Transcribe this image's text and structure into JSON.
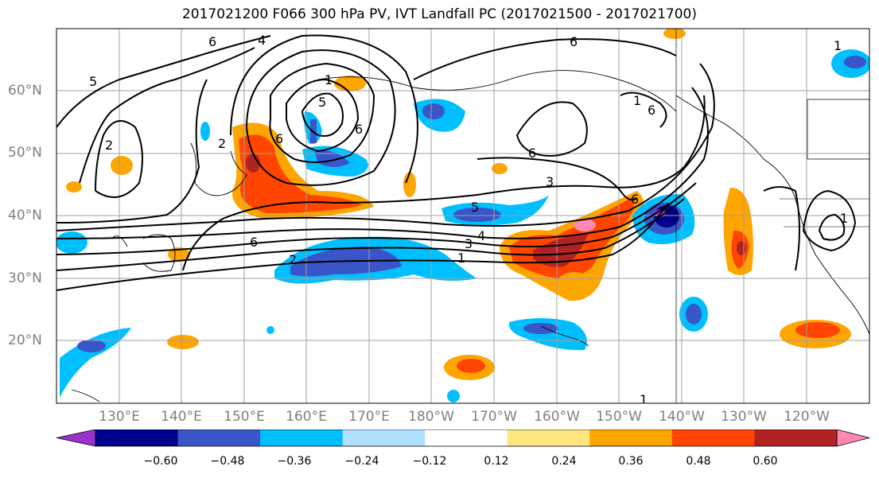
{
  "title": "2017021200 F066 300 hPa PV, IVT Landfall PC (2017021500 - 2017021700)",
  "map": {
    "lat_labels": [
      "60°N",
      "50°N",
      "40°N",
      "30°N",
      "20°N"
    ],
    "lon_labels": [
      "130°E",
      "140°E",
      "150°E",
      "160°E",
      "170°E",
      "180°W",
      "170°W",
      "160°W",
      "150°W",
      "140°W",
      "130°W",
      "120°W"
    ],
    "contour_labels": [
      "6",
      "4",
      "5",
      "2",
      "6",
      "2",
      "1",
      "5",
      "6",
      "6",
      "6",
      "3",
      "5",
      "6",
      "3",
      "4",
      "1",
      "2",
      "6",
      "1",
      "1",
      "6",
      "1",
      "1"
    ],
    "label_color": "#7f7f7f"
  },
  "colorbar": {
    "ticks": [
      "−0.60",
      "−0.48",
      "−0.36",
      "−0.24",
      "−0.12",
      "0.12",
      "0.24",
      "0.36",
      "0.48",
      "0.60"
    ],
    "colors": [
      "#9932cc",
      "#00008b",
      "#3a55c8",
      "#00bfff",
      "#b0e0ff",
      "#ffffff",
      "#ffe680",
      "#ffa500",
      "#ff4500",
      "#b22222",
      "#ff88b0"
    ]
  }
}
